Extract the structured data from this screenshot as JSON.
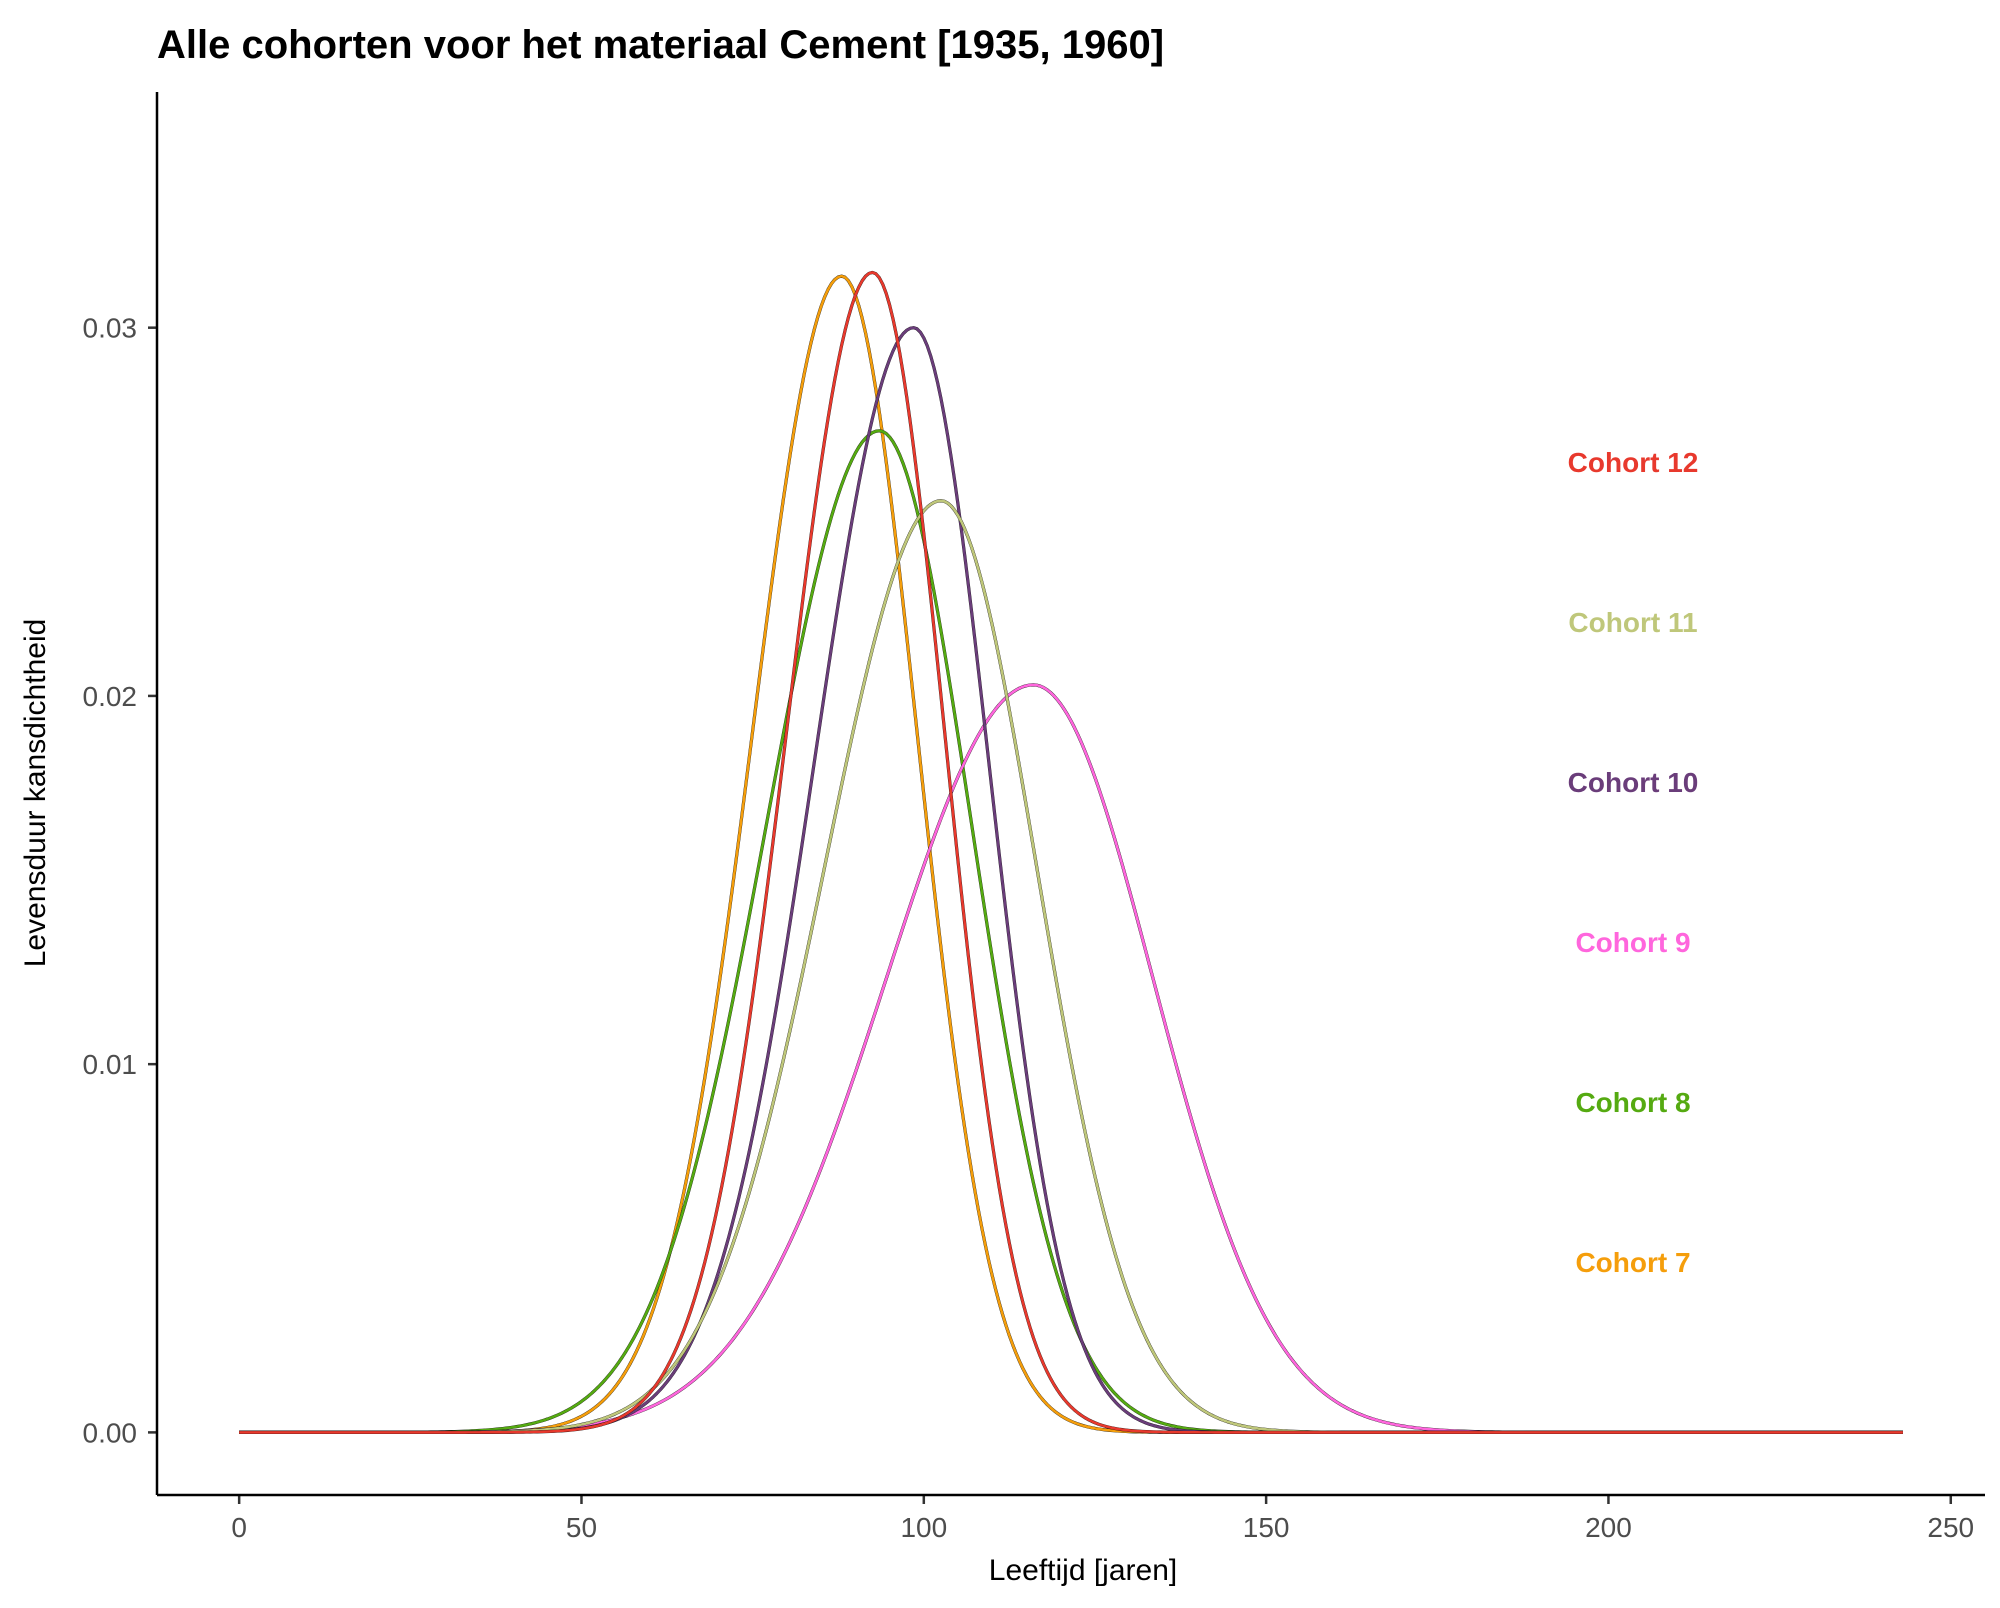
{
  "chart_data": {
    "type": "line",
    "title": "Alle cohorten voor het materiaal Cement [1935, 1960]",
    "xlabel": "Leeftijd [jaren]",
    "ylabel": "Levensduur kansdichtheid",
    "xlim": [
      -12,
      255
    ],
    "ylim": [
      -0.0017,
      0.0364
    ],
    "x_ticks": [
      0,
      50,
      100,
      150,
      200,
      250
    ],
    "x_tick_labels": [
      "0",
      "50",
      "100",
      "150",
      "200",
      "250"
    ],
    "y_ticks": [
      0,
      0.01,
      0.02,
      0.03
    ],
    "y_tick_labels": [
      "0.00",
      "0.01",
      "0.02",
      "0.03"
    ],
    "grid": false,
    "legend": "right",
    "x_range": [
      0,
      243
    ],
    "series": [
      {
        "name": "Cohort 7",
        "color": "#f59e0b",
        "peak_x": 88,
        "peak_y": 0.0314,
        "sd_left": 13.0,
        "sd_right": 11.0
      },
      {
        "name": "Cohort 8",
        "color": "#55aa11",
        "peak_x": 93.5,
        "peak_y": 0.0272,
        "sd_left": 16.5,
        "sd_right": 13.5
      },
      {
        "name": "Cohort 9",
        "color": "#ff66dd",
        "peak_x": 116,
        "peak_y": 0.0203,
        "sd_left": 21.5,
        "sd_right": 17.5
      },
      {
        "name": "Cohort 10",
        "color": "#6a3d7a",
        "peak_x": 98.5,
        "peak_y": 0.03,
        "sd_left": 14.5,
        "sd_right": 11.0
      },
      {
        "name": "Cohort 11",
        "color": "#bfc77a",
        "peak_x": 102.5,
        "peak_y": 0.0253,
        "sd_left": 17.0,
        "sd_right": 14.0
      },
      {
        "name": "Cohort 12",
        "color": "#e8392d",
        "peak_x": 92.5,
        "peak_y": 0.0315,
        "sd_left": 12.5,
        "sd_right": 10.5
      }
    ],
    "legend_order": [
      "Cohort 12",
      "Cohort 11",
      "Cohort 10",
      "Cohort 9",
      "Cohort 8",
      "Cohort 7"
    ]
  }
}
